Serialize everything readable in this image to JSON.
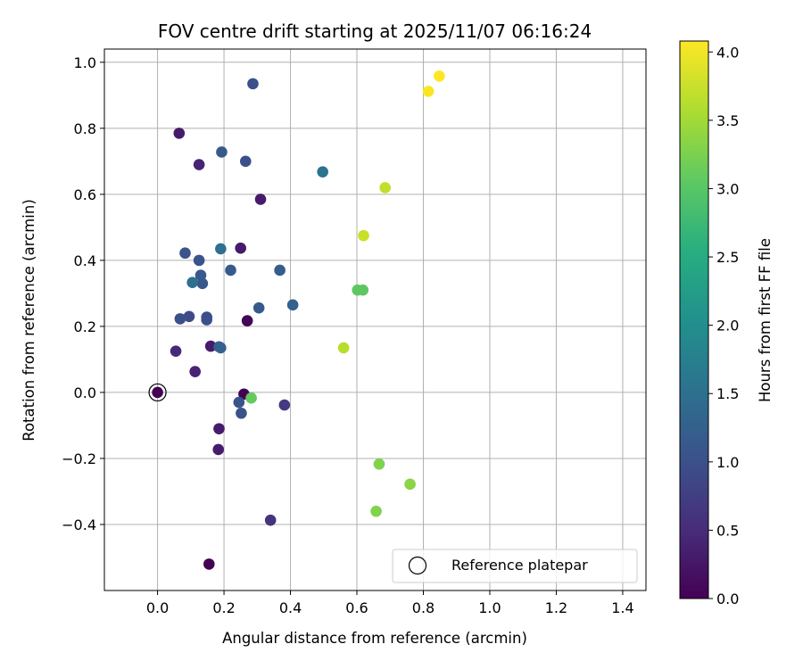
{
  "chart_data": {
    "type": "scatter",
    "title": "FOV centre drift starting at 2025/11/07 06:16:24",
    "xlabel": "Angular distance from reference (arcmin)",
    "ylabel": "Rotation from reference (arcmin)",
    "xlim": [
      -0.16,
      1.47
    ],
    "ylim": [
      -0.6,
      1.04
    ],
    "xticks": [
      0.0,
      0.2,
      0.4,
      0.6,
      0.8,
      1.0,
      1.2,
      1.4
    ],
    "xtick_labels": [
      "0.0",
      "0.2",
      "0.4",
      "0.6",
      "0.8",
      "1.0",
      "1.2",
      "1.4"
    ],
    "yticks": [
      -0.4,
      -0.2,
      0.0,
      0.2,
      0.4,
      0.6,
      0.8,
      1.0
    ],
    "ytick_labels": [
      "−0.4",
      "−0.2",
      "0.0",
      "0.2",
      "0.4",
      "0.6",
      "0.8",
      "1.0"
    ],
    "grid": true,
    "colorbar": {
      "label": "Hours from first FF file",
      "range": [
        0.0,
        4.08
      ],
      "ticks": [
        0.0,
        0.5,
        1.0,
        1.5,
        2.0,
        2.5,
        3.0,
        3.5,
        4.0
      ],
      "tick_labels": [
        "0.0",
        "0.5",
        "1.0",
        "1.5",
        "2.0",
        "2.5",
        "3.0",
        "3.5",
        "4.0"
      ],
      "colormap": "viridis"
    },
    "legend": {
      "label": "Reference platepar",
      "location": "lower-right"
    },
    "reference_point": {
      "x": 0.0,
      "y": 0.0,
      "hours": 0.0
    },
    "points": [
      {
        "x": 0.0,
        "y": 0.0,
        "hours": 0.0
      },
      {
        "x": 0.155,
        "y": -0.52,
        "hours": 0.0
      },
      {
        "x": 0.26,
        "y": -0.005,
        "hours": 0.0
      },
      {
        "x": 0.27,
        "y": 0.217,
        "hours": 0.05
      },
      {
        "x": 0.065,
        "y": 0.785,
        "hours": 0.3
      },
      {
        "x": 0.185,
        "y": -0.11,
        "hours": 0.3
      },
      {
        "x": 0.183,
        "y": -0.173,
        "hours": 0.3
      },
      {
        "x": 0.31,
        "y": 0.585,
        "hours": 0.3
      },
      {
        "x": 0.16,
        "y": 0.14,
        "hours": 0.3
      },
      {
        "x": 0.25,
        "y": 0.437,
        "hours": 0.3
      },
      {
        "x": 0.125,
        "y": 0.69,
        "hours": 0.4
      },
      {
        "x": 0.113,
        "y": 0.063,
        "hours": 0.4
      },
      {
        "x": 0.055,
        "y": 0.125,
        "hours": 0.45
      },
      {
        "x": 0.34,
        "y": -0.387,
        "hours": 0.6
      },
      {
        "x": 0.382,
        "y": -0.038,
        "hours": 0.7
      },
      {
        "x": 0.095,
        "y": 0.23,
        "hours": 0.9
      },
      {
        "x": 0.148,
        "y": 0.228,
        "hours": 0.95
      },
      {
        "x": 0.068,
        "y": 0.223,
        "hours": 1.0
      },
      {
        "x": 0.148,
        "y": 0.22,
        "hours": 1.0
      },
      {
        "x": 0.265,
        "y": 0.7,
        "hours": 1.0
      },
      {
        "x": 0.287,
        "y": 0.935,
        "hours": 1.0
      },
      {
        "x": 0.245,
        "y": -0.03,
        "hours": 1.05
      },
      {
        "x": 0.252,
        "y": -0.063,
        "hours": 1.05
      },
      {
        "x": 0.083,
        "y": 0.422,
        "hours": 1.05
      },
      {
        "x": 0.125,
        "y": 0.4,
        "hours": 1.05
      },
      {
        "x": 0.135,
        "y": 0.33,
        "hours": 1.1
      },
      {
        "x": 0.193,
        "y": 0.728,
        "hours": 1.15
      },
      {
        "x": 0.22,
        "y": 0.37,
        "hours": 1.15
      },
      {
        "x": 0.13,
        "y": 0.355,
        "hours": 1.15
      },
      {
        "x": 0.305,
        "y": 0.256,
        "hours": 1.15
      },
      {
        "x": 0.368,
        "y": 0.37,
        "hours": 1.2
      },
      {
        "x": 0.407,
        "y": 0.265,
        "hours": 1.25
      },
      {
        "x": 0.185,
        "y": 0.138,
        "hours": 1.25
      },
      {
        "x": 0.19,
        "y": 0.135,
        "hours": 1.25
      },
      {
        "x": 0.105,
        "y": 0.333,
        "hours": 1.5
      },
      {
        "x": 0.19,
        "y": 0.435,
        "hours": 1.5
      },
      {
        "x": 0.497,
        "y": 0.668,
        "hours": 1.55
      },
      {
        "x": 0.282,
        "y": -0.017,
        "hours": 3.1
      },
      {
        "x": 0.602,
        "y": 0.31,
        "hours": 3.05
      },
      {
        "x": 0.618,
        "y": 0.31,
        "hours": 3.05
      },
      {
        "x": 0.658,
        "y": -0.36,
        "hours": 3.3
      },
      {
        "x": 0.667,
        "y": -0.217,
        "hours": 3.3
      },
      {
        "x": 0.76,
        "y": -0.278,
        "hours": 3.35
      },
      {
        "x": 0.56,
        "y": 0.135,
        "hours": 3.65
      },
      {
        "x": 0.685,
        "y": 0.62,
        "hours": 3.7
      },
      {
        "x": 0.62,
        "y": 0.475,
        "hours": 3.75
      },
      {
        "x": 0.815,
        "y": 0.912,
        "hours": 4.05
      },
      {
        "x": 0.848,
        "y": 0.958,
        "hours": 4.08
      }
    ]
  }
}
